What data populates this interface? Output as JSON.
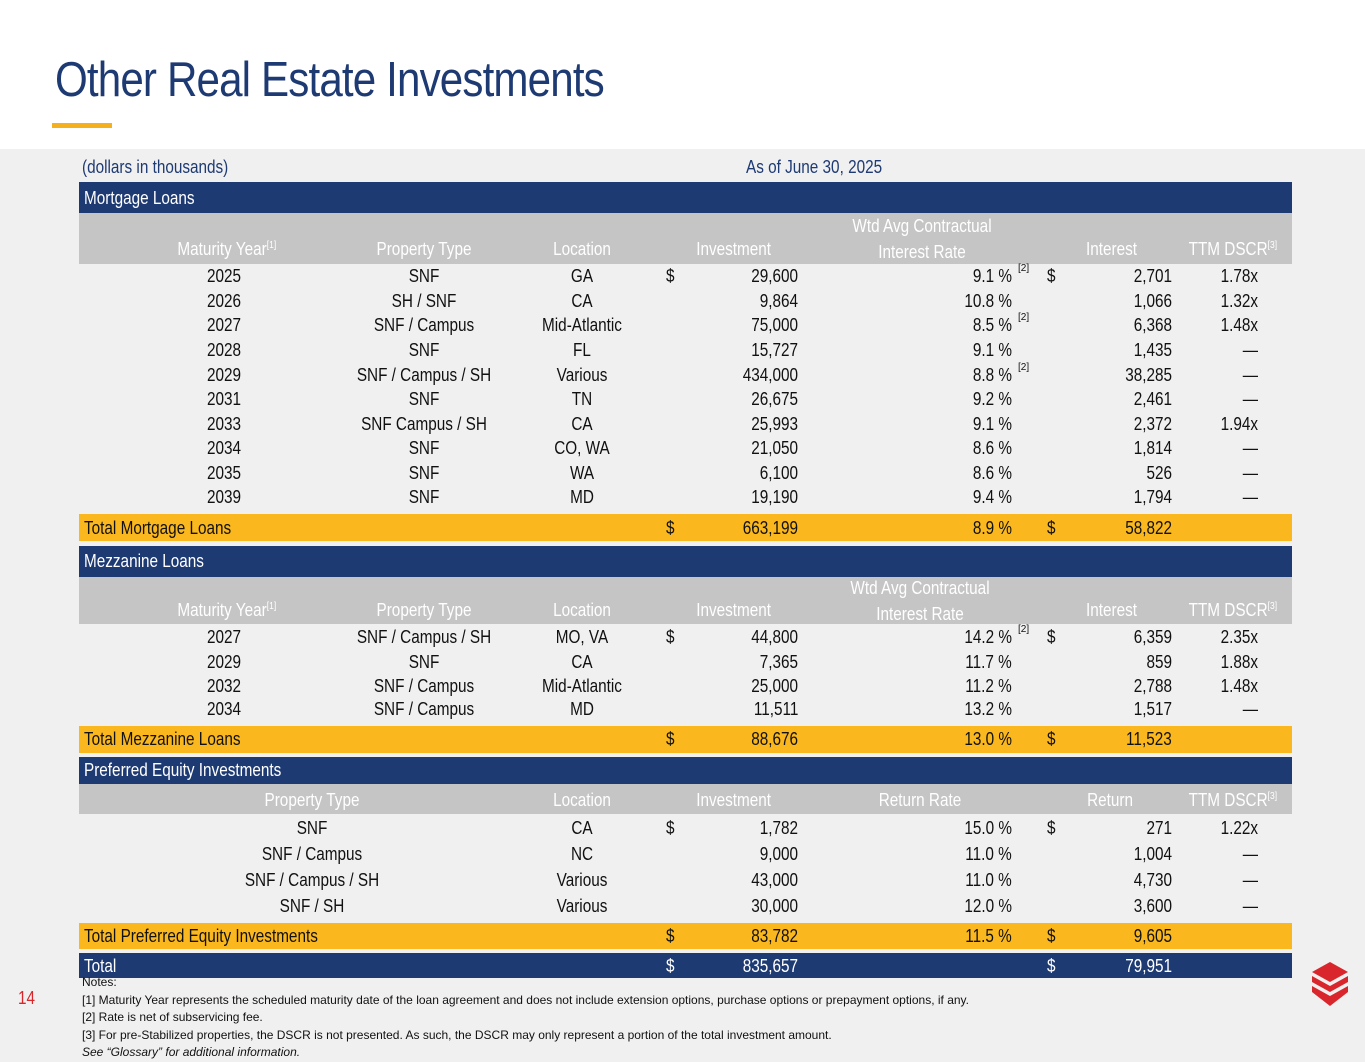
{
  "title": "Other Real Estate Investments",
  "units_note": "(dollars in thousands)",
  "as_of": "As of June 30, 2025",
  "page_number": "14",
  "colors": {
    "navy": "#1e3a73",
    "gold": "#fbb81e",
    "gray": "#c5c5c5",
    "red": "#d9262c"
  },
  "mortgage": {
    "section_title": "Mortgage Loans",
    "headers": {
      "maturity_year": "Maturity Year",
      "maturity_fn": "[1]",
      "property_type": "Property Type",
      "location": "Location",
      "investment": "Investment",
      "rate_line1": "Wtd Avg Contractual",
      "rate_line2": "Interest Rate",
      "interest": "Interest",
      "dscr": "TTM DSCR",
      "dscr_fn": "[3]"
    },
    "rows": [
      {
        "year": "2025",
        "type": "SNF",
        "loc": "GA",
        "dollar": "$",
        "inv": "29,600",
        "rate": "9.1 %",
        "fn": "[2]",
        "dollar2": "$",
        "int": "2,701",
        "dscr": "1.78x"
      },
      {
        "year": "2026",
        "type": "SH / SNF",
        "loc": "CA",
        "dollar": "",
        "inv": "9,864",
        "rate": "10.8 %",
        "fn": "",
        "dollar2": "",
        "int": "1,066",
        "dscr": "1.32x"
      },
      {
        "year": "2027",
        "type": "SNF / Campus",
        "loc": "Mid-Atlantic",
        "dollar": "",
        "inv": "75,000",
        "rate": "8.5 %",
        "fn": "[2]",
        "dollar2": "",
        "int": "6,368",
        "dscr": "1.48x"
      },
      {
        "year": "2028",
        "type": "SNF",
        "loc": "FL",
        "dollar": "",
        "inv": "15,727",
        "rate": "9.1 %",
        "fn": "",
        "dollar2": "",
        "int": "1,435",
        "dscr": "—"
      },
      {
        "year": "2029",
        "type": "SNF / Campus / SH",
        "loc": "Various",
        "dollar": "",
        "inv": "434,000",
        "rate": "8.8 %",
        "fn": "[2]",
        "dollar2": "",
        "int": "38,285",
        "dscr": "—"
      },
      {
        "year": "2031",
        "type": "SNF",
        "loc": "TN",
        "dollar": "",
        "inv": "26,675",
        "rate": "9.2 %",
        "fn": "",
        "dollar2": "",
        "int": "2,461",
        "dscr": "—"
      },
      {
        "year": "2033",
        "type": "SNF Campus / SH",
        "loc": "CA",
        "dollar": "",
        "inv": "25,993",
        "rate": "9.1 %",
        "fn": "",
        "dollar2": "",
        "int": "2,372",
        "dscr": "1.94x"
      },
      {
        "year": "2034",
        "type": "SNF",
        "loc": "CO, WA",
        "dollar": "",
        "inv": "21,050",
        "rate": "8.6 %",
        "fn": "",
        "dollar2": "",
        "int": "1,814",
        "dscr": "—"
      },
      {
        "year": "2035",
        "type": "SNF",
        "loc": "WA",
        "dollar": "",
        "inv": "6,100",
        "rate": "8.6 %",
        "fn": "",
        "dollar2": "",
        "int": "526",
        "dscr": "—"
      },
      {
        "year": "2039",
        "type": "SNF",
        "loc": "MD",
        "dollar": "",
        "inv": "19,190",
        "rate": "9.4 %",
        "fn": "",
        "dollar2": "",
        "int": "1,794",
        "dscr": "—"
      }
    ],
    "total": {
      "label": "Total Mortgage Loans",
      "dollar": "$",
      "inv": "663,199",
      "rate": "8.9 %",
      "dollar2": "$",
      "int": "58,822"
    }
  },
  "mezzanine": {
    "section_title": "Mezzanine Loans",
    "headers": {
      "maturity_year": "Maturity Year",
      "maturity_fn": "[1]",
      "property_type": "Property Type",
      "location": "Location",
      "investment": "Investment",
      "rate_line1": "Wtd Avg Contractual",
      "rate_line2": "Interest Rate",
      "interest": "Interest",
      "dscr": "TTM DSCR",
      "dscr_fn": "[3]"
    },
    "rows": [
      {
        "year": "2027",
        "type": "SNF / Campus / SH",
        "loc": "MO, VA",
        "dollar": "$",
        "inv": "44,800",
        "rate": "14.2 %",
        "fn": "[2]",
        "dollar2": "$",
        "int": "6,359",
        "dscr": "2.35x"
      },
      {
        "year": "2029",
        "type": "SNF",
        "loc": "CA",
        "dollar": "",
        "inv": "7,365",
        "rate": "11.7 %",
        "fn": "",
        "dollar2": "",
        "int": "859",
        "dscr": "1.88x"
      },
      {
        "year": "2032",
        "type": "SNF / Campus",
        "loc": "Mid-Atlantic",
        "dollar": "",
        "inv": "25,000",
        "rate": "11.2 %",
        "fn": "",
        "dollar2": "",
        "int": "2,788",
        "dscr": "1.48x"
      },
      {
        "year": "2034",
        "type": "SNF / Campus",
        "loc": "MD",
        "dollar": "",
        "inv": "11,511",
        "rate": "13.2 %",
        "fn": "",
        "dollar2": "",
        "int": "1,517",
        "dscr": "—"
      }
    ],
    "total": {
      "label": "Total Mezzanine Loans",
      "dollar": "$",
      "inv": "88,676",
      "rate": "13.0 %",
      "dollar2": "$",
      "int": "11,523"
    }
  },
  "preferred": {
    "section_title": "Preferred Equity Investments",
    "headers": {
      "property_type": "Property Type",
      "location": "Location",
      "investment": "Investment",
      "rate": "Return Rate",
      "ret": "Return",
      "dscr": "TTM DSCR",
      "dscr_fn": "[3]"
    },
    "rows": [
      {
        "type": "SNF",
        "loc": "CA",
        "dollar": "$",
        "inv": "1,782",
        "rate": "15.0 %",
        "dollar2": "$",
        "ret": "271",
        "dscr": "1.22x"
      },
      {
        "type": "SNF / Campus",
        "loc": "NC",
        "dollar": "",
        "inv": "9,000",
        "rate": "11.0 %",
        "dollar2": "",
        "ret": "1,004",
        "dscr": "—"
      },
      {
        "type": "SNF / Campus / SH",
        "loc": "Various",
        "dollar": "",
        "inv": "43,000",
        "rate": "11.0 %",
        "dollar2": "",
        "ret": "4,730",
        "dscr": "—"
      },
      {
        "type": "SNF / SH",
        "loc": "Various",
        "dollar": "",
        "inv": "30,000",
        "rate": "12.0 %",
        "dollar2": "",
        "ret": "3,600",
        "dscr": "—"
      }
    ],
    "total": {
      "label": "Total Preferred Equity Investments",
      "dollar": "$",
      "inv": "83,782",
      "rate": "11.5 %",
      "dollar2": "$",
      "ret": "9,605"
    }
  },
  "grand_total": {
    "label": "Total",
    "dollar": "$",
    "inv": "835,657",
    "dollar2": "$",
    "int": "79,951"
  },
  "notes": [
    "Notes:",
    "[1] Maturity Year represents the scheduled maturity date of the loan agreement and does not include extension options, purchase options or prepayment options, if any.",
    "[2] Rate is net of subservicing fee.",
    "[3] For pre-Stabilized properties, the DSCR is not presented. As such, the DSCR may only represent a portion of the total investment amount.",
    "See “Glossary” for additional information."
  ]
}
